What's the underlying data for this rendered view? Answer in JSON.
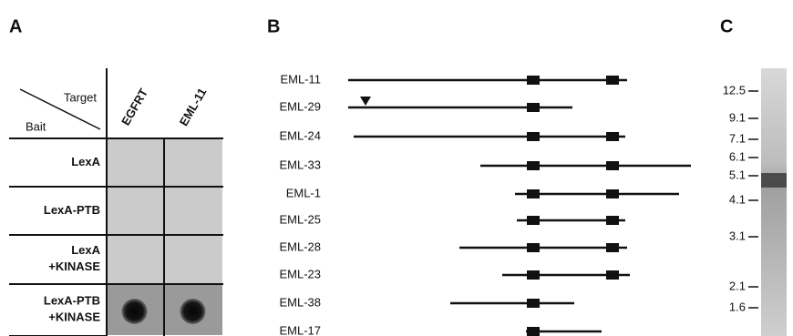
{
  "panels": {
    "a": {
      "label": "A",
      "target": "Target",
      "bait": "Bait",
      "columns": [
        "EGFRT",
        "EML-11"
      ],
      "rows": [
        "LexA",
        "LexA-PTB",
        "LexA\n+KINASE",
        "LexA-PTB\n+KINASE"
      ]
    },
    "b": {
      "label": "B",
      "clones": [
        "EML-11",
        "EML-29",
        "EML-24",
        "EML-33",
        "EML-1",
        "EML-25",
        "EML-28",
        "EML-23",
        "EML-38",
        "EML-17"
      ]
    },
    "c": {
      "label": "C",
      "markers": [
        12.5,
        9.1,
        7.1,
        6.1,
        5.1,
        4.1,
        3.1,
        2.1,
        1.6
      ]
    }
  }
}
